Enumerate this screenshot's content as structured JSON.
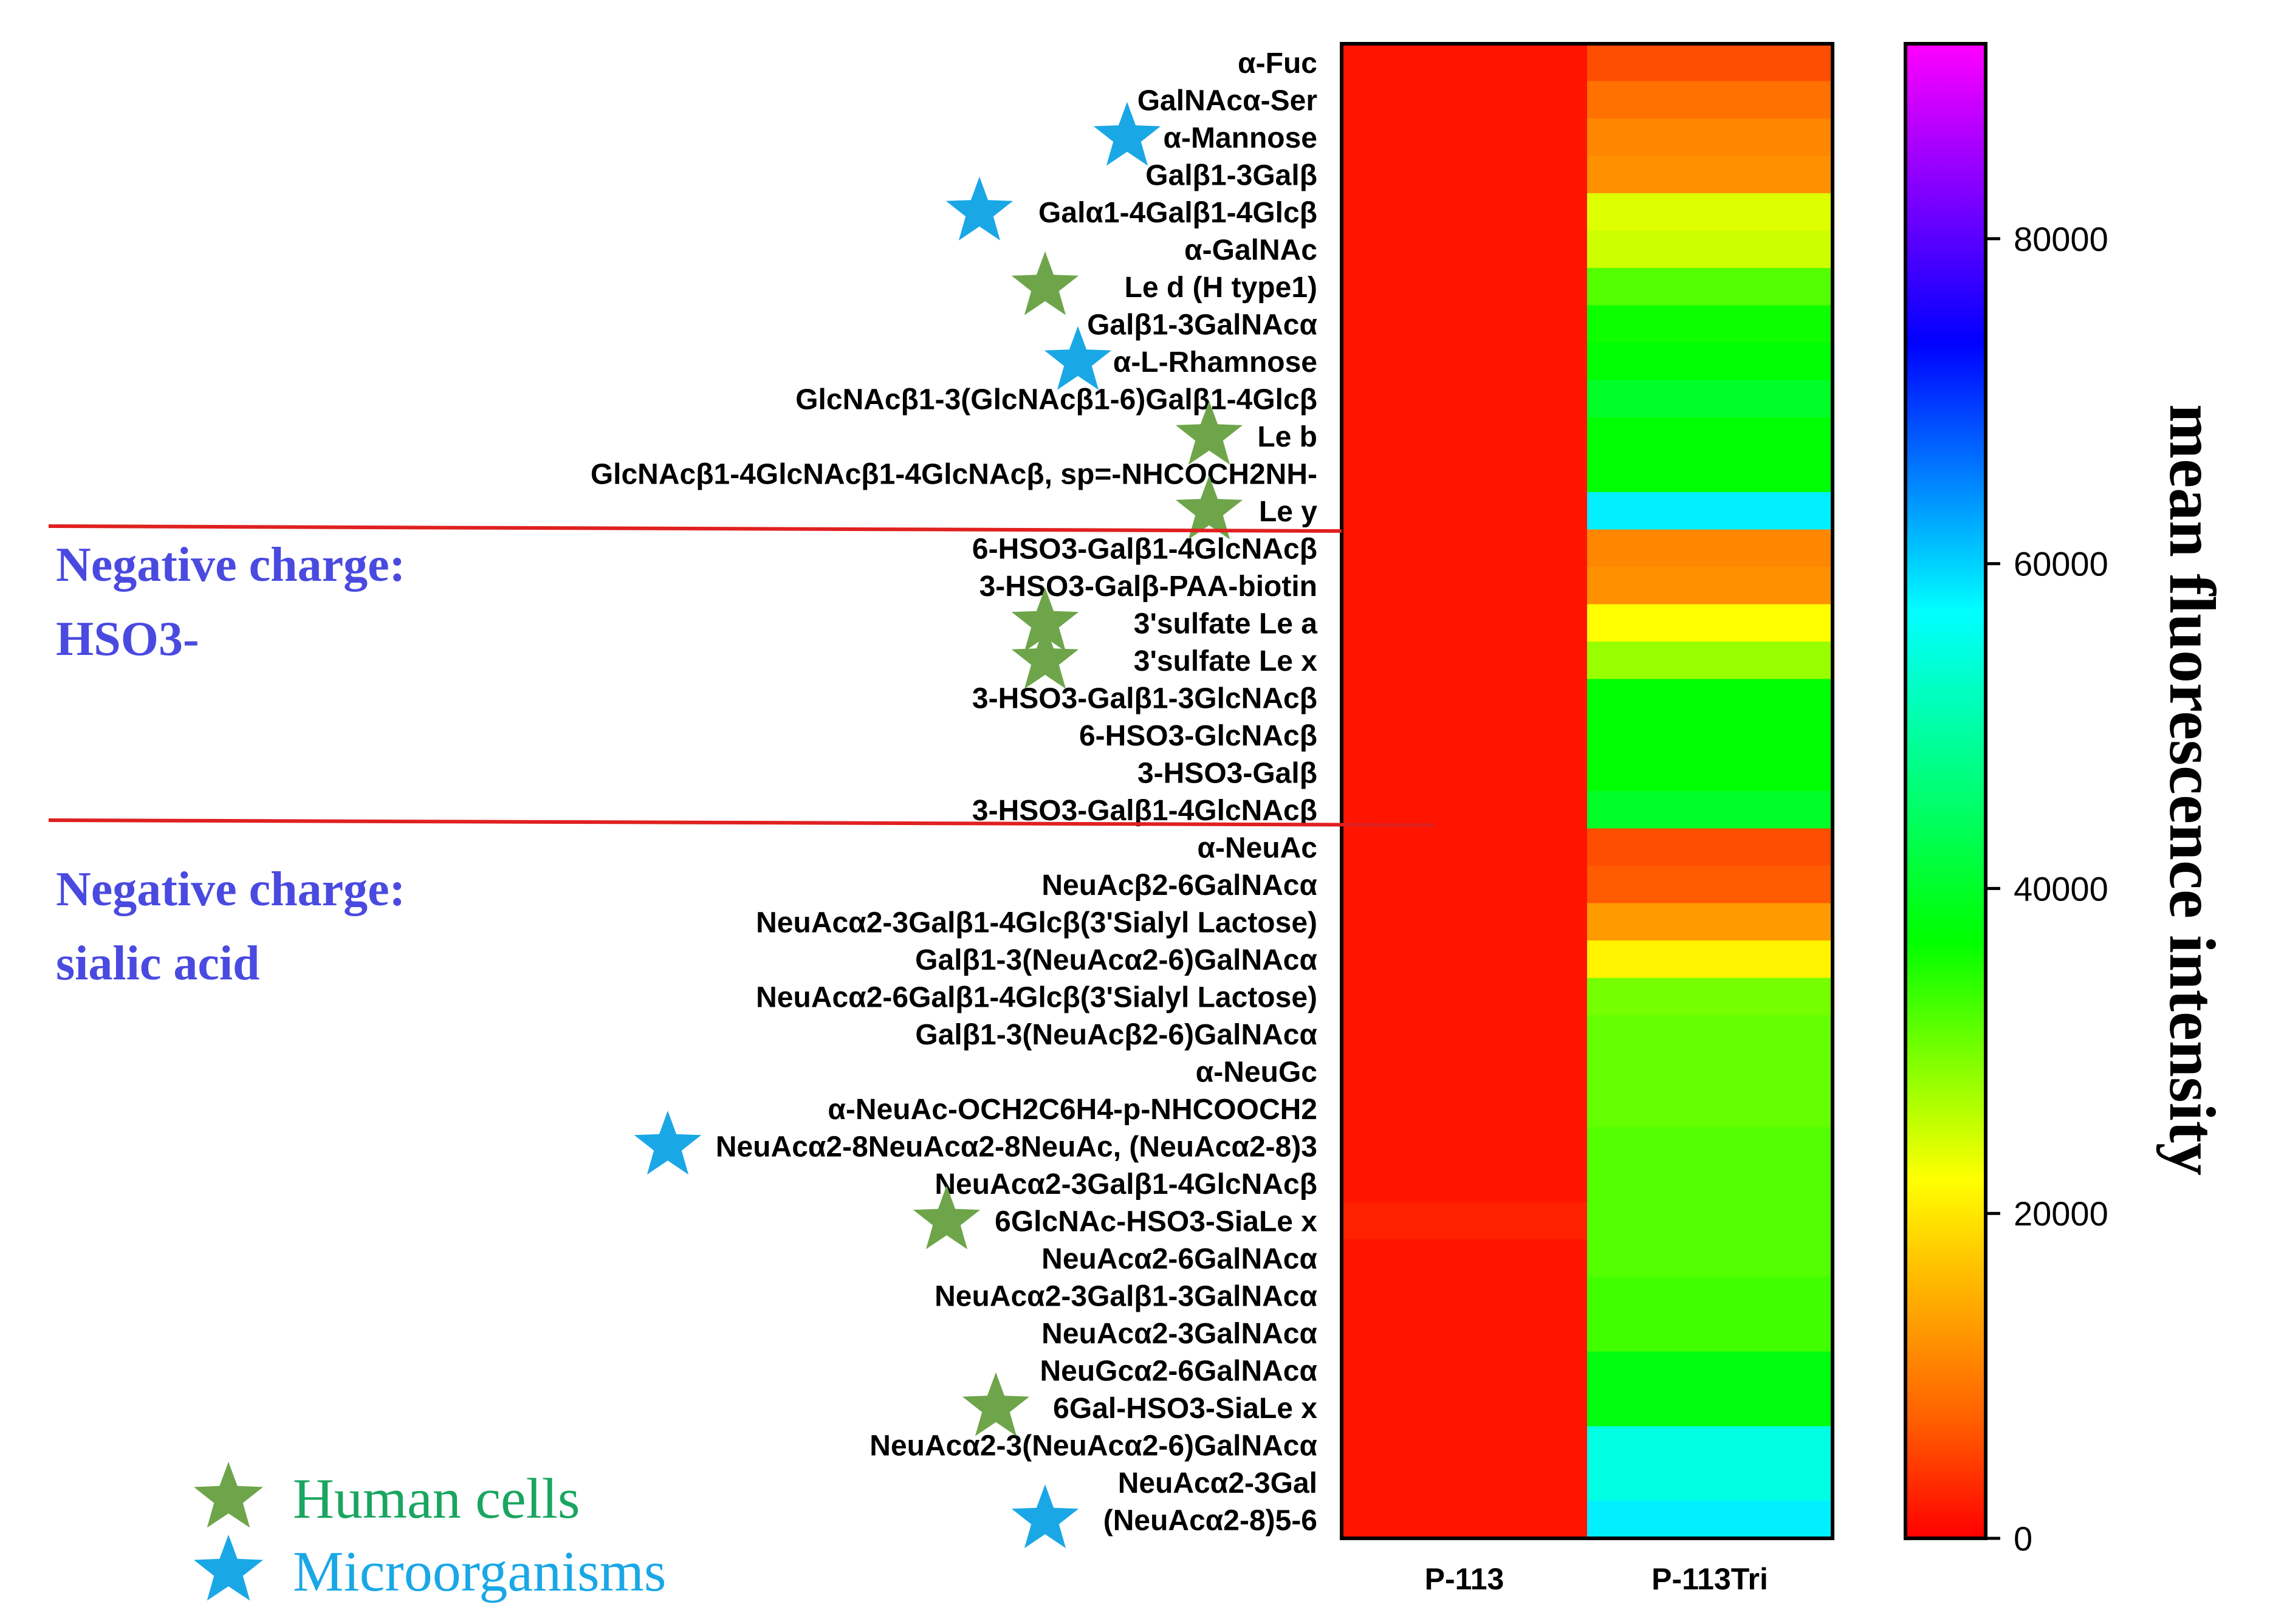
{
  "chart_data": {
    "type": "heatmap",
    "columns": [
      "P-113",
      "P-113Tri"
    ],
    "colorbar": {
      "title": "mean fluorescence intensity",
      "range": [
        0,
        92000
      ],
      "ticks": [
        "0",
        "20000",
        "40000",
        "60000",
        "80000"
      ],
      "tick_values": [
        0,
        20000,
        40000,
        60000,
        80000
      ],
      "colors": [
        "#ff0000",
        "#ff8000",
        "#ffff00",
        "#00ff00",
        "#00ffff",
        "#0000ff",
        "#ff00ff"
      ]
    },
    "rows": [
      {
        "label": "α-Fuc",
        "values": [
          1500,
          6000
        ],
        "marker": ""
      },
      {
        "label": "GalNAcα-Ser",
        "values": [
          1500,
          9000
        ],
        "marker": ""
      },
      {
        "label": "α-Mannose",
        "values": [
          1500,
          11000
        ],
        "marker": "microorganism"
      },
      {
        "label": "Galβ1-3Galβ",
        "values": [
          1500,
          12000
        ],
        "marker": ""
      },
      {
        "label": "Galα1-4Galβ1-4Glcβ",
        "values": [
          1500,
          24000
        ],
        "marker": "microorganism"
      },
      {
        "label": "α-GalNAc",
        "values": [
          1500,
          25000
        ],
        "marker": ""
      },
      {
        "label": "Le d (H type1)",
        "values": [
          1500,
          32000
        ],
        "marker": "human"
      },
      {
        "label": "Galβ1-3GalNAcα",
        "values": [
          1500,
          36000
        ],
        "marker": ""
      },
      {
        "label": "α-L-Rhamnose",
        "values": [
          1500,
          37000
        ],
        "marker": "microorganism"
      },
      {
        "label": "GlcNAcβ1-3(GlcNAcβ1-6)Galβ1-4Glcβ",
        "values": [
          1500,
          40000
        ],
        "marker": ""
      },
      {
        "label": "Le b",
        "values": [
          1500,
          37000
        ],
        "marker": "human"
      },
      {
        "label": "GlcNAcβ1-4GlcNAcβ1-4GlcNAcβ, sp=-NHCOCH2NH-",
        "values": [
          1500,
          37000
        ],
        "marker": ""
      },
      {
        "label": "Le y",
        "values": [
          1500,
          58000
        ],
        "marker": "human"
      },
      {
        "label": "6-HSO3-Galβ1-4GlcNAcβ",
        "values": [
          1500,
          11000
        ],
        "marker": ""
      },
      {
        "label": "3-HSO3-Galβ-PAA-biotin",
        "values": [
          1500,
          12000
        ],
        "marker": ""
      },
      {
        "label": "3'sulfate Le a",
        "values": [
          1500,
          22000
        ],
        "marker": "human"
      },
      {
        "label": "3'sulfate Le x",
        "values": [
          1500,
          28000
        ],
        "marker": "human"
      },
      {
        "label": "3-HSO3-Galβ1-3GlcNAcβ",
        "values": [
          1500,
          37000
        ],
        "marker": ""
      },
      {
        "label": "6-HSO3-GlcNAcβ",
        "values": [
          1500,
          37000
        ],
        "marker": ""
      },
      {
        "label": "3-HSO3-Galβ",
        "values": [
          1500,
          37000
        ],
        "marker": ""
      },
      {
        "label": "3-HSO3-Galβ1-4GlcNAcβ",
        "values": [
          1500,
          40000
        ],
        "marker": ""
      },
      {
        "label": "α-NeuAc",
        "values": [
          1500,
          6000
        ],
        "marker": ""
      },
      {
        "label": "NeuAcβ2-6GalNAcα",
        "values": [
          1500,
          7000
        ],
        "marker": ""
      },
      {
        "label": "NeuAcα2-3Galβ1-4Glcβ(3'Sialyl Lactose)",
        "values": [
          1500,
          13000
        ],
        "marker": ""
      },
      {
        "label": "Galβ1-3(NeuAcα2-6)GalNAcα",
        "values": [
          1500,
          21000
        ],
        "marker": ""
      },
      {
        "label": "NeuAcα2-6Galβ1-4Glcβ(3'Sialyl Lactose)",
        "values": [
          1500,
          30000
        ],
        "marker": ""
      },
      {
        "label": "Galβ1-3(NeuAcβ2-6)GalNAcα",
        "values": [
          1500,
          31000
        ],
        "marker": ""
      },
      {
        "label": "α-NeuGc",
        "values": [
          1500,
          31000
        ],
        "marker": ""
      },
      {
        "label": "α-NeuAc-OCH2C6H4-p-NHCOOCH2",
        "values": [
          1500,
          31000
        ],
        "marker": ""
      },
      {
        "label": "NeuAcα2-8NeuAcα2-8NeuAc, (NeuAcα2-8)3",
        "values": [
          1500,
          32000
        ],
        "marker": "microorganism"
      },
      {
        "label": "NeuAcα2-3Galβ1-4GlcNAcβ",
        "values": [
          1500,
          32000
        ],
        "marker": ""
      },
      {
        "label": "6GlcNAc-HSO3-SiaLe x",
        "values": [
          2500,
          32000
        ],
        "marker": "human"
      },
      {
        "label": "NeuAcα2-6GalNAcα",
        "values": [
          1500,
          32000
        ],
        "marker": ""
      },
      {
        "label": "NeuAcα2-3Galβ1-3GalNAcα",
        "values": [
          1500,
          33000
        ],
        "marker": ""
      },
      {
        "label": "NeuAcα2-3GalNAcα",
        "values": [
          1500,
          33000
        ],
        "marker": ""
      },
      {
        "label": "NeuGcα2-6GalNAcα",
        "values": [
          1500,
          38000
        ],
        "marker": ""
      },
      {
        "label": "6Gal-HSO3-SiaLe x",
        "values": [
          1500,
          38000
        ],
        "marker": "human"
      },
      {
        "label": "NeuAcα2-3(NeuAcα2-6)GalNAcα",
        "values": [
          1500,
          55000
        ],
        "marker": ""
      },
      {
        "label": "NeuAcα2-3Gal",
        "values": [
          1500,
          55000
        ],
        "marker": ""
      },
      {
        "label": "(NeuAcα2-8)5-6",
        "values": [
          1500,
          58000
        ],
        "marker": "microorganism"
      }
    ],
    "groups": [
      {
        "label_line1": "Negative charge:",
        "label_line2": "HSO3-"
      },
      {
        "label_line1": "Negative charge:",
        "label_line2": "sialic acid"
      }
    ],
    "legend": [
      {
        "label": "Human cells",
        "marker": "human"
      },
      {
        "label": "Microorganisms",
        "marker": "microorganism"
      }
    ]
  },
  "colors": {
    "human_star": "#6ea54a",
    "microorganism_star": "#1aa7e6",
    "human_text": "#1aa560",
    "microorganism_text": "#1aa7e6",
    "section_text": "#4a4ae0",
    "divider": "#e02020"
  }
}
